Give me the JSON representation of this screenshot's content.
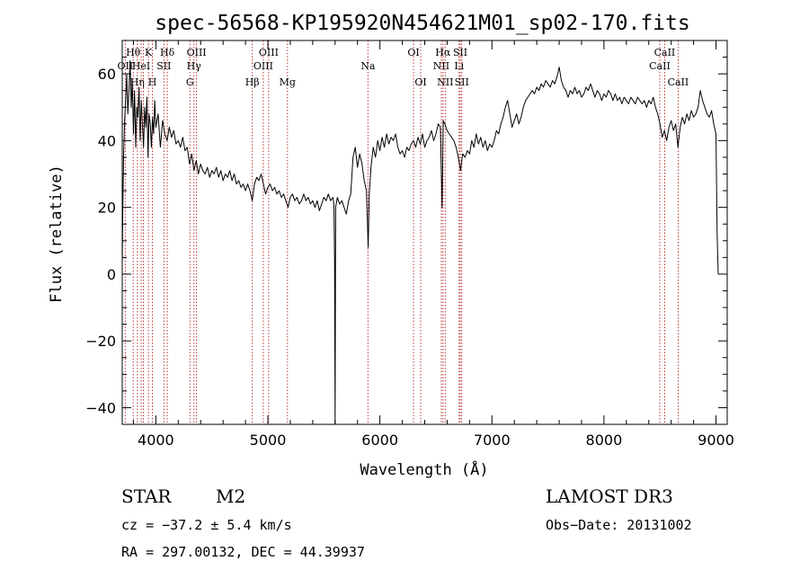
{
  "chart_data": {
    "type": "line",
    "title": "spec-56568-KP195920N454621M01_sp02-170.fits",
    "xlabel": "Wavelength (Å)",
    "ylabel": "Flux (relative)",
    "xlim": [
      3700,
      9100
    ],
    "ylim": [
      -45,
      70
    ],
    "x_ticks": [
      4000,
      5000,
      6000,
      7000,
      8000,
      9000
    ],
    "y_ticks": [
      -40,
      -20,
      0,
      20,
      40,
      60
    ],
    "series": [
      {
        "name": "spectrum",
        "points": [
          [
            3700,
            2
          ],
          [
            3705,
            20
          ],
          [
            3712,
            35
          ],
          [
            3720,
            45
          ],
          [
            3730,
            52
          ],
          [
            3740,
            60
          ],
          [
            3750,
            48
          ],
          [
            3760,
            55
          ],
          [
            3770,
            64
          ],
          [
            3780,
            50
          ],
          [
            3790,
            58
          ],
          [
            3800,
            42
          ],
          [
            3810,
            55
          ],
          [
            3820,
            38
          ],
          [
            3830,
            50
          ],
          [
            3840,
            47
          ],
          [
            3850,
            56
          ],
          [
            3860,
            40
          ],
          [
            3870,
            52
          ],
          [
            3880,
            45
          ],
          [
            3890,
            38
          ],
          [
            3900,
            50
          ],
          [
            3910,
            44
          ],
          [
            3920,
            53
          ],
          [
            3930,
            35
          ],
          [
            3940,
            48
          ],
          [
            3950,
            45
          ],
          [
            3960,
            38
          ],
          [
            3970,
            47
          ],
          [
            3980,
            42
          ],
          [
            3990,
            52
          ],
          [
            4000,
            44
          ],
          [
            4020,
            48
          ],
          [
            4040,
            38
          ],
          [
            4060,
            46
          ],
          [
            4080,
            42
          ],
          [
            4100,
            40
          ],
          [
            4120,
            44
          ],
          [
            4140,
            41
          ],
          [
            4160,
            43
          ],
          [
            4180,
            39
          ],
          [
            4200,
            40
          ],
          [
            4220,
            38
          ],
          [
            4240,
            41
          ],
          [
            4260,
            37
          ],
          [
            4280,
            38
          ],
          [
            4300,
            33
          ],
          [
            4320,
            36
          ],
          [
            4340,
            31
          ],
          [
            4360,
            34
          ],
          [
            4380,
            30
          ],
          [
            4400,
            33
          ],
          [
            4420,
            31
          ],
          [
            4440,
            30
          ],
          [
            4460,
            32
          ],
          [
            4480,
            29
          ],
          [
            4500,
            31
          ],
          [
            4520,
            30
          ],
          [
            4540,
            32
          ],
          [
            4560,
            29
          ],
          [
            4580,
            31
          ],
          [
            4600,
            28
          ],
          [
            4620,
            30
          ],
          [
            4640,
            29
          ],
          [
            4660,
            31
          ],
          [
            4680,
            28
          ],
          [
            4700,
            30
          ],
          [
            4720,
            27
          ],
          [
            4740,
            28
          ],
          [
            4760,
            26
          ],
          [
            4780,
            27
          ],
          [
            4800,
            25
          ],
          [
            4820,
            27
          ],
          [
            4840,
            25
          ],
          [
            4860,
            22
          ],
          [
            4880,
            27
          ],
          [
            4900,
            29
          ],
          [
            4920,
            28
          ],
          [
            4940,
            30
          ],
          [
            4960,
            27
          ],
          [
            4980,
            24
          ],
          [
            5000,
            26
          ],
          [
            5020,
            27
          ],
          [
            5040,
            25
          ],
          [
            5060,
            26
          ],
          [
            5080,
            24
          ],
          [
            5100,
            25
          ],
          [
            5120,
            23
          ],
          [
            5140,
            24
          ],
          [
            5160,
            22
          ],
          [
            5180,
            20
          ],
          [
            5200,
            23
          ],
          [
            5220,
            24
          ],
          [
            5240,
            22
          ],
          [
            5260,
            23
          ],
          [
            5280,
            21
          ],
          [
            5300,
            22
          ],
          [
            5320,
            24
          ],
          [
            5340,
            22
          ],
          [
            5360,
            23
          ],
          [
            5380,
            21
          ],
          [
            5400,
            22
          ],
          [
            5420,
            20
          ],
          [
            5440,
            22
          ],
          [
            5460,
            19
          ],
          [
            5480,
            21
          ],
          [
            5500,
            23
          ],
          [
            5520,
            22
          ],
          [
            5540,
            24
          ],
          [
            5560,
            22
          ],
          [
            5580,
            23
          ],
          [
            5590,
            21
          ],
          [
            5595,
            5
          ],
          [
            5600,
            -45
          ],
          [
            5605,
            20
          ],
          [
            5620,
            23
          ],
          [
            5640,
            21
          ],
          [
            5660,
            22
          ],
          [
            5680,
            20
          ],
          [
            5700,
            18
          ],
          [
            5720,
            22
          ],
          [
            5740,
            24
          ],
          [
            5760,
            35
          ],
          [
            5780,
            38
          ],
          [
            5800,
            32
          ],
          [
            5820,
            36
          ],
          [
            5840,
            33
          ],
          [
            5860,
            28
          ],
          [
            5880,
            25
          ],
          [
            5895,
            8
          ],
          [
            5905,
            24
          ],
          [
            5920,
            32
          ],
          [
            5940,
            38
          ],
          [
            5960,
            35
          ],
          [
            5980,
            40
          ],
          [
            6000,
            37
          ],
          [
            6020,
            41
          ],
          [
            6040,
            38
          ],
          [
            6060,
            42
          ],
          [
            6080,
            39
          ],
          [
            6100,
            41
          ],
          [
            6120,
            40
          ],
          [
            6140,
            42
          ],
          [
            6160,
            38
          ],
          [
            6180,
            36
          ],
          [
            6200,
            37
          ],
          [
            6220,
            35
          ],
          [
            6240,
            38
          ],
          [
            6260,
            37
          ],
          [
            6280,
            39
          ],
          [
            6300,
            40
          ],
          [
            6320,
            38
          ],
          [
            6340,
            41
          ],
          [
            6360,
            39
          ],
          [
            6380,
            42
          ],
          [
            6400,
            38
          ],
          [
            6420,
            40
          ],
          [
            6440,
            41
          ],
          [
            6460,
            43
          ],
          [
            6480,
            40
          ],
          [
            6500,
            42
          ],
          [
            6520,
            45
          ],
          [
            6540,
            44
          ],
          [
            6555,
            20
          ],
          [
            6565,
            46
          ],
          [
            6580,
            45
          ],
          [
            6600,
            43
          ],
          [
            6620,
            42
          ],
          [
            6640,
            41
          ],
          [
            6660,
            40
          ],
          [
            6680,
            38
          ],
          [
            6700,
            35
          ],
          [
            6710,
            33
          ],
          [
            6720,
            31
          ],
          [
            6730,
            34
          ],
          [
            6740,
            36
          ],
          [
            6760,
            35
          ],
          [
            6780,
            37
          ],
          [
            6800,
            36
          ],
          [
            6820,
            40
          ],
          [
            6840,
            38
          ],
          [
            6860,
            42
          ],
          [
            6880,
            39
          ],
          [
            6900,
            41
          ],
          [
            6920,
            38
          ],
          [
            6940,
            40
          ],
          [
            6960,
            37
          ],
          [
            6980,
            39
          ],
          [
            7000,
            38
          ],
          [
            7020,
            40
          ],
          [
            7040,
            43
          ],
          [
            7060,
            42
          ],
          [
            7080,
            45
          ],
          [
            7100,
            47
          ],
          [
            7120,
            50
          ],
          [
            7140,
            52
          ],
          [
            7160,
            48
          ],
          [
            7180,
            44
          ],
          [
            7200,
            46
          ],
          [
            7220,
            48
          ],
          [
            7240,
            45
          ],
          [
            7260,
            47
          ],
          [
            7280,
            50
          ],
          [
            7300,
            52
          ],
          [
            7320,
            53
          ],
          [
            7340,
            54
          ],
          [
            7360,
            55
          ],
          [
            7380,
            54
          ],
          [
            7400,
            56
          ],
          [
            7420,
            55
          ],
          [
            7440,
            57
          ],
          [
            7460,
            56
          ],
          [
            7480,
            58
          ],
          [
            7500,
            57
          ],
          [
            7520,
            56
          ],
          [
            7540,
            58
          ],
          [
            7560,
            57
          ],
          [
            7580,
            59
          ],
          [
            7600,
            62
          ],
          [
            7620,
            58
          ],
          [
            7640,
            56
          ],
          [
            7660,
            55
          ],
          [
            7680,
            53
          ],
          [
            7700,
            55
          ],
          [
            7720,
            54
          ],
          [
            7740,
            56
          ],
          [
            7760,
            54
          ],
          [
            7780,
            55
          ],
          [
            7800,
            53
          ],
          [
            7820,
            54
          ],
          [
            7840,
            56
          ],
          [
            7860,
            55
          ],
          [
            7880,
            57
          ],
          [
            7900,
            55
          ],
          [
            7920,
            53
          ],
          [
            7940,
            55
          ],
          [
            7960,
            54
          ],
          [
            7980,
            52
          ],
          [
            8000,
            54
          ],
          [
            8020,
            53
          ],
          [
            8040,
            55
          ],
          [
            8060,
            54
          ],
          [
            8080,
            52
          ],
          [
            8100,
            54
          ],
          [
            8120,
            52
          ],
          [
            8140,
            53
          ],
          [
            8160,
            51
          ],
          [
            8180,
            53
          ],
          [
            8200,
            52
          ],
          [
            8220,
            51
          ],
          [
            8240,
            53
          ],
          [
            8260,
            52
          ],
          [
            8280,
            51
          ],
          [
            8300,
            53
          ],
          [
            8320,
            52
          ],
          [
            8340,
            51
          ],
          [
            8360,
            52
          ],
          [
            8380,
            50
          ],
          [
            8400,
            52
          ],
          [
            8420,
            51
          ],
          [
            8440,
            53
          ],
          [
            8460,
            50
          ],
          [
            8480,
            48
          ],
          [
            8500,
            45
          ],
          [
            8520,
            41
          ],
          [
            8540,
            43
          ],
          [
            8560,
            40
          ],
          [
            8580,
            44
          ],
          [
            8600,
            46
          ],
          [
            8620,
            43
          ],
          [
            8640,
            45
          ],
          [
            8660,
            38
          ],
          [
            8680,
            44
          ],
          [
            8700,
            47
          ],
          [
            8720,
            45
          ],
          [
            8740,
            48
          ],
          [
            8760,
            46
          ],
          [
            8780,
            49
          ],
          [
            8800,
            47
          ],
          [
            8820,
            48
          ],
          [
            8840,
            50
          ],
          [
            8860,
            55
          ],
          [
            8880,
            52
          ],
          [
            8900,
            50
          ],
          [
            8920,
            48
          ],
          [
            8940,
            47
          ],
          [
            8960,
            49
          ],
          [
            8980,
            45
          ],
          [
            9000,
            42
          ],
          [
            9010,
            12
          ],
          [
            9020,
            0
          ]
        ]
      }
    ],
    "lines": [
      {
        "wl": 3727,
        "label": "OII",
        "row": 1
      },
      {
        "wl": 3798,
        "label": "Hθ",
        "row": 0
      },
      {
        "wl": 3835,
        "label": "Hη",
        "row": 2
      },
      {
        "wl": 3869,
        "label": "HeI",
        "row": 1
      },
      {
        "wl": 3889,
        "label": "",
        "row": 0
      },
      {
        "wl": 3934,
        "label": "K",
        "row": 0
      },
      {
        "wl": 3969,
        "label": "H",
        "row": 2
      },
      {
        "wl": 4072,
        "label": "SII",
        "row": 1
      },
      {
        "wl": 4102,
        "label": "Hδ",
        "row": 0
      },
      {
        "wl": 4304,
        "label": "G",
        "row": 2
      },
      {
        "wl": 4340,
        "label": "Hγ",
        "row": 1
      },
      {
        "wl": 4363,
        "label": "OIII",
        "row": 0
      },
      {
        "wl": 4861,
        "label": "Hβ",
        "row": 2
      },
      {
        "wl": 4959,
        "label": "OIII",
        "row": 1
      },
      {
        "wl": 5007,
        "label": "OIII",
        "row": 0
      },
      {
        "wl": 5175,
        "label": "Mg",
        "row": 2
      },
      {
        "wl": 5893,
        "label": "Na",
        "row": 1
      },
      {
        "wl": 6300,
        "label": "OI",
        "row": 0
      },
      {
        "wl": 6364,
        "label": "OI",
        "row": 2
      },
      {
        "wl": 6548,
        "label": "NII",
        "row": 1
      },
      {
        "wl": 6563,
        "label": "Hα",
        "row": 0
      },
      {
        "wl": 6583,
        "label": "NII",
        "row": 2
      },
      {
        "wl": 6707,
        "label": "Li",
        "row": 1
      },
      {
        "wl": 6717,
        "label": "SII",
        "row": 0
      },
      {
        "wl": 6731,
        "label": "SII",
        "row": 2
      },
      {
        "wl": 8498,
        "label": "CaII",
        "row": 1
      },
      {
        "wl": 8542,
        "label": "CaII",
        "row": 0
      },
      {
        "wl": 8662,
        "label": "CaII",
        "row": 2
      }
    ]
  },
  "info": {
    "object_class": "STAR",
    "subclass": "M2",
    "survey": "LAMOST DR3",
    "redshift_line": "cz = −37.2 ± 5.4 km/s",
    "obs_date": "Obs−Date: 20131002",
    "coords": "RA = 297.00132, DEC =  44.39937"
  },
  "colors": {
    "spectrum": "#000000",
    "line_markers": "#b22222"
  }
}
